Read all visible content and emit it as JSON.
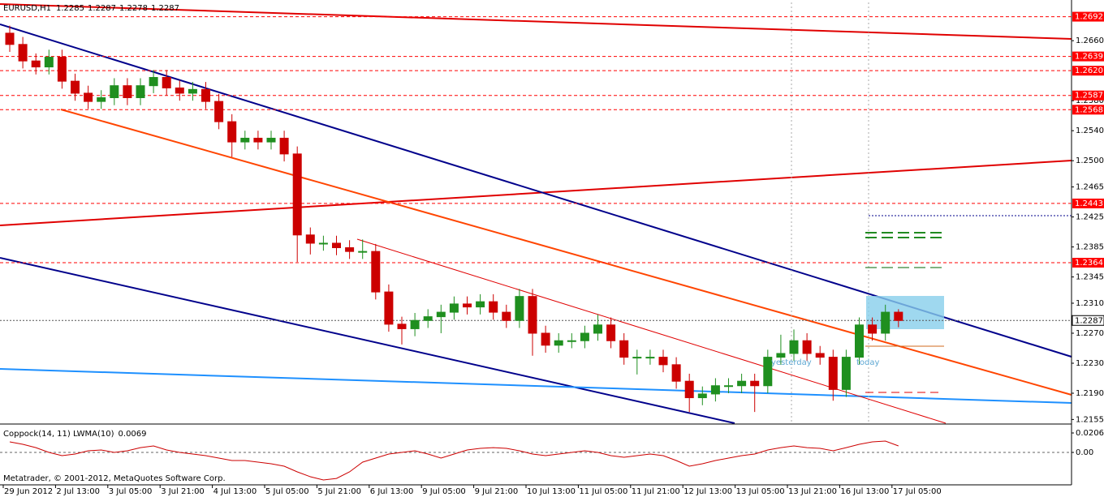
{
  "chart_data": [
    {
      "type": "candlestick",
      "title": "EURUSD,H1",
      "header_values": [
        1.2285,
        1.2287,
        1.2278,
        1.2287
      ],
      "categories": [
        "29 Jun 2012",
        null,
        null,
        null,
        "2 Jul 13:00",
        null,
        null,
        null,
        "3 Jul 05:00",
        null,
        null,
        null,
        "3 Jul 21:00",
        null,
        null,
        null,
        "4 Jul 13:00",
        null,
        null,
        null,
        "5 Jul 05:00",
        null,
        null,
        null,
        "5 Jul 21:00",
        null,
        null,
        null,
        "6 Jul 13:00",
        null,
        null,
        null,
        "9 Jul 05:00",
        null,
        null,
        null,
        "9 Jul 21:00",
        null,
        null,
        null,
        "10 Jul 13:00",
        null,
        null,
        null,
        "11 Jul 05:00",
        null,
        null,
        null,
        "11 Jul 21:00",
        null,
        null,
        null,
        "12 Jul 13:00",
        null,
        null,
        null,
        "13 Jul 05:00",
        null,
        null,
        null,
        "13 Jul 21:00",
        null,
        null,
        null,
        "16 Jul 13:00",
        null,
        null,
        null,
        "17 Jul 05:00"
      ],
      "open": [
        1.267,
        1.2655,
        1.2633,
        1.2625,
        1.2638,
        1.2606,
        1.259,
        1.2579,
        1.2584,
        1.26,
        1.2584,
        1.26,
        1.2611,
        1.2597,
        1.259,
        1.2595,
        1.2579,
        1.2552,
        1.2525,
        1.253,
        1.2525,
        1.253,
        1.2509,
        1.2401,
        1.239,
        1.239,
        1.2384,
        1.2379,
        1.2379,
        1.2325,
        1.2282,
        1.2276,
        1.2287,
        1.2292,
        1.2298,
        1.2309,
        1.2305,
        1.2312,
        1.2298,
        1.2287,
        1.2319,
        1.227,
        1.2254,
        1.226,
        1.226,
        1.227,
        1.2281,
        1.226,
        1.2238,
        1.2238,
        1.2238,
        1.2228,
        1.2206,
        1.2184,
        1.2189,
        1.22,
        1.22,
        1.2206,
        1.22,
        1.2238,
        1.2243,
        1.226,
        1.2243,
        1.2238,
        1.2195,
        1.2238,
        1.2281,
        1.227,
        1.2298
      ],
      "high": [
        1.268,
        1.2665,
        1.2643,
        1.2648,
        1.2648,
        1.2616,
        1.26,
        1.2594,
        1.261,
        1.261,
        1.261,
        1.2621,
        1.2621,
        1.2607,
        1.2605,
        1.2605,
        1.2589,
        1.2562,
        1.254,
        1.254,
        1.254,
        1.254,
        1.2519,
        1.2411,
        1.24,
        1.24,
        1.2394,
        1.2395,
        1.2389,
        1.2335,
        1.2292,
        1.2297,
        1.2302,
        1.2308,
        1.2319,
        1.2319,
        1.2322,
        1.2322,
        1.2308,
        1.2329,
        1.2329,
        1.228,
        1.227,
        1.227,
        1.228,
        1.2295,
        1.2291,
        1.227,
        1.2248,
        1.2248,
        1.2248,
        1.2238,
        1.2216,
        1.2199,
        1.221,
        1.221,
        1.2216,
        1.2216,
        1.2248,
        1.2268,
        1.2275,
        1.227,
        1.2253,
        1.2248,
        1.2248,
        1.2291,
        1.2291,
        1.2308,
        1.2302
      ],
      "low": [
        1.2645,
        1.2623,
        1.2615,
        1.2615,
        1.2596,
        1.258,
        1.2569,
        1.2569,
        1.2574,
        1.2574,
        1.2574,
        1.259,
        1.2587,
        1.258,
        1.258,
        1.2569,
        1.2542,
        1.2505,
        1.2515,
        1.2515,
        1.2515,
        1.2499,
        1.2365,
        1.2375,
        1.238,
        1.2374,
        1.2369,
        1.2369,
        1.2315,
        1.2272,
        1.2255,
        1.2266,
        1.2277,
        1.227,
        1.2288,
        1.2295,
        1.2295,
        1.2288,
        1.2277,
        1.2277,
        1.224,
        1.2244,
        1.2244,
        1.225,
        1.225,
        1.226,
        1.225,
        1.2228,
        1.2215,
        1.2228,
        1.2218,
        1.2196,
        1.2165,
        1.2174,
        1.2179,
        1.219,
        1.219,
        1.2165,
        1.219,
        1.2228,
        1.2233,
        1.2233,
        1.2228,
        1.218,
        1.2185,
        1.2228,
        1.226,
        1.226,
        1.2278
      ],
      "close": [
        1.2655,
        1.2633,
        1.2625,
        1.2638,
        1.2606,
        1.259,
        1.2579,
        1.2584,
        1.26,
        1.2584,
        1.26,
        1.2611,
        1.2597,
        1.259,
        1.2595,
        1.2579,
        1.2552,
        1.2525,
        1.253,
        1.2525,
        1.253,
        1.2509,
        1.2401,
        1.239,
        1.239,
        1.2384,
        1.2379,
        1.2379,
        1.2325,
        1.2282,
        1.2276,
        1.2287,
        1.2292,
        1.2298,
        1.2309,
        1.2305,
        1.2312,
        1.2298,
        1.2287,
        1.2319,
        1.227,
        1.2254,
        1.226,
        1.226,
        1.227,
        1.2281,
        1.226,
        1.2238,
        1.2238,
        1.2238,
        1.2228,
        1.2206,
        1.2184,
        1.2189,
        1.22,
        1.22,
        1.2206,
        1.22,
        1.2238,
        1.2243,
        1.226,
        1.2243,
        1.2238,
        1.2195,
        1.2238,
        1.2281,
        1.227,
        1.2298,
        1.2287
      ],
      "up_color": "#1f8f1f",
      "down_color": "#cc0000",
      "ylim": [
        1.215,
        1.2711
      ],
      "yticks": [
        {
          "value": 1.266,
          "label": "1.2660"
        },
        {
          "value": 1.258,
          "label": "1.2580"
        },
        {
          "value": 1.254,
          "label": "1.2540"
        },
        {
          "value": 1.25,
          "label": "1.2500"
        },
        1.2465,
        1.2425,
        1.2385,
        1.2345,
        {
          "value": 1.231,
          "label": "1.2310"
        },
        {
          "value": 1.227,
          "label": "1.2270"
        },
        {
          "value": 1.223,
          "label": "1.2230"
        },
        {
          "value": 1.219,
          "label": "1.2190"
        },
        1.2155
      ],
      "levels": [
        1.2692,
        1.2639,
        {
          "value": 1.262,
          "label": "1.2620"
        },
        1.2587,
        1.2568,
        1.2443,
        1.2364
      ],
      "level_color": "#ff0000",
      "current_price": 1.2287,
      "annotations": [
        "yesterday",
        "today"
      ]
    },
    {
      "type": "line",
      "title": "Coppock(14, 11) LWMA(10)",
      "last_value": 0.0069,
      "color": "#cc0000",
      "values": [
        0.0112,
        0.0086,
        0.0051,
        0,
        -0.0034,
        -0.0017,
        0.0017,
        0.0026,
        0,
        0.0017,
        0.0051,
        0.0069,
        0.0026,
        0,
        -0.0017,
        -0.0034,
        -0.006,
        -0.0086,
        -0.0086,
        -0.0103,
        -0.012,
        -0.0146,
        -0.0206,
        -0.0257,
        -0.0292,
        -0.0275,
        -0.0206,
        -0.0103,
        -0.006,
        -0.0017,
        0,
        0.0017,
        -0.0017,
        -0.006,
        -0.0017,
        0.0026,
        0.0043,
        0.0051,
        0.0043,
        0.0017,
        -0.0017,
        -0.0034,
        -0.0017,
        0,
        0.0017,
        0,
        -0.0034,
        -0.0051,
        -0.0034,
        -0.0017,
        -0.0034,
        -0.0086,
        -0.0146,
        -0.012,
        -0.0086,
        -0.006,
        -0.0034,
        -0.0017,
        0.0026,
        0.0051,
        0.0069,
        0.0051,
        0.0043,
        0.0017,
        0.0051,
        0.0086,
        0.0112,
        0.012,
        0.0069
      ],
      "ylim": [
        -0.0326,
        0.0292
      ],
      "yticks": [
        0.0206,
        {
          "value": 0,
          "label": "0.00"
        }
      ]
    }
  ],
  "watermark": "Metatrader, © 2001-2012, MetaQuotes Software Corp."
}
